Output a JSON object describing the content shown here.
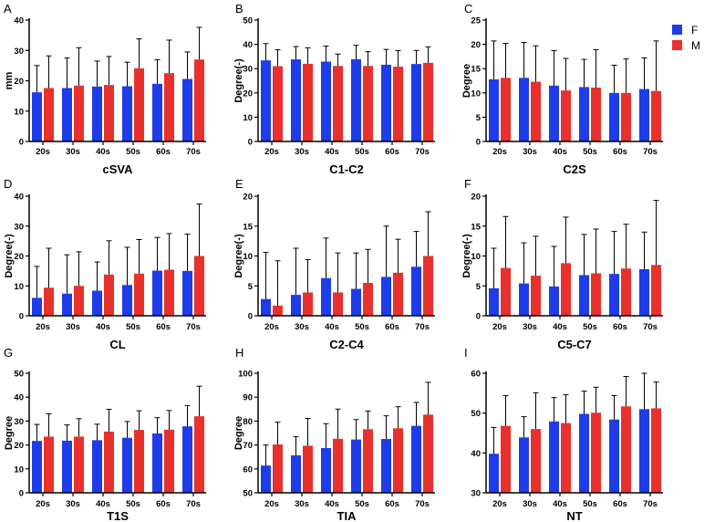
{
  "legend": {
    "items": [
      {
        "label": "F",
        "color": "#1e3ce8"
      },
      {
        "label": "M",
        "color": "#e8312d"
      }
    ]
  },
  "chart_data": [
    {
      "panel": "A",
      "type": "bar",
      "title": "cSVA",
      "ylabel": "mm",
      "categories": [
        "20s",
        "30s",
        "40s",
        "50s",
        "60s",
        "70s"
      ],
      "ylim": [
        0,
        40
      ],
      "yticks": [
        0,
        10,
        20,
        30,
        40
      ],
      "series": [
        {
          "name": "F",
          "values": [
            16.2,
            17.6,
            18.1,
            18.2,
            19.0,
            20.6
          ],
          "sd": [
            8.8,
            9.9,
            8.4,
            7.9,
            7.9,
            8.9
          ]
        },
        {
          "name": "M",
          "values": [
            17.6,
            18.4,
            18.6,
            24.1,
            22.5,
            27.0
          ],
          "sd": [
            10.6,
            12.5,
            9.4,
            9.7,
            10.9,
            10.6
          ]
        }
      ]
    },
    {
      "panel": "B",
      "type": "bar",
      "title": "C1-C2",
      "ylabel": "Degree(-)",
      "categories": [
        "20s",
        "30s",
        "40s",
        "50s",
        "60s",
        "70s"
      ],
      "ylim": [
        0,
        50
      ],
      "yticks": [
        0,
        10,
        20,
        30,
        40,
        50
      ],
      "series": [
        {
          "name": "F",
          "values": [
            33.4,
            33.8,
            32.9,
            33.9,
            31.6,
            31.9
          ],
          "sd": [
            6.9,
            5.3,
            6.4,
            5.7,
            6.3,
            5.6
          ]
        },
        {
          "name": "M",
          "values": [
            31.0,
            32.0,
            31.1,
            31.1,
            30.8,
            32.4
          ],
          "sd": [
            6.8,
            6.6,
            4.9,
            5.9,
            6.6,
            6.6
          ]
        }
      ]
    },
    {
      "panel": "C",
      "type": "bar",
      "title": "C2S",
      "ylabel": "Degree",
      "categories": [
        "20s",
        "30s",
        "40s",
        "50s",
        "60s",
        "70s"
      ],
      "ylim": [
        0,
        25
      ],
      "yticks": [
        0,
        5,
        10,
        15,
        20,
        25
      ],
      "series": [
        {
          "name": "F",
          "values": [
            12.8,
            13.1,
            11.5,
            11.2,
            10.0,
            10.8
          ],
          "sd": [
            7.9,
            7.3,
            7.2,
            5.7,
            5.7,
            6.4
          ]
        },
        {
          "name": "M",
          "values": [
            13.1,
            12.3,
            10.5,
            11.1,
            10.0,
            10.4
          ],
          "sd": [
            7.1,
            7.4,
            6.6,
            7.8,
            7.0,
            10.3
          ]
        }
      ]
    },
    {
      "panel": "D",
      "type": "bar",
      "title": "CL",
      "ylabel": "Degree(-)",
      "categories": [
        "20s",
        "30s",
        "40s",
        "50s",
        "60s",
        "70s"
      ],
      "ylim": [
        0,
        40
      ],
      "yticks": [
        0,
        10,
        20,
        30,
        40
      ],
      "series": [
        {
          "name": "F",
          "values": [
            6.0,
            7.4,
            8.4,
            10.3,
            15.1,
            15.0
          ],
          "sd": [
            10.5,
            13.0,
            9.6,
            12.6,
            11.1,
            12.3
          ]
        },
        {
          "name": "M",
          "values": [
            9.4,
            10.0,
            13.8,
            14.1,
            15.4,
            20.0
          ],
          "sd": [
            13.2,
            11.4,
            11.3,
            11.4,
            12.1,
            17.4
          ]
        }
      ]
    },
    {
      "panel": "E",
      "type": "bar",
      "title": "C2-C4",
      "ylabel": "Degree(-)",
      "categories": [
        "20s",
        "30s",
        "40s",
        "50s",
        "60s",
        "70s"
      ],
      "ylim": [
        0,
        20
      ],
      "yticks": [
        0,
        5,
        10,
        15,
        20
      ],
      "series": [
        {
          "name": "F",
          "values": [
            2.8,
            3.5,
            6.3,
            4.5,
            6.5,
            8.2
          ],
          "sd": [
            7.8,
            7.8,
            6.7,
            6.0,
            8.5,
            5.9
          ]
        },
        {
          "name": "M",
          "values": [
            1.7,
            3.9,
            3.9,
            5.5,
            7.2,
            10.0
          ],
          "sd": [
            7.5,
            5.5,
            6.6,
            5.6,
            5.6,
            7.4
          ]
        }
      ]
    },
    {
      "panel": "F",
      "type": "bar",
      "title": "C5-C7",
      "ylabel": "Degree(-)",
      "categories": [
        "20s",
        "30s",
        "40s",
        "50s",
        "60s",
        "70s"
      ],
      "ylim": [
        0,
        20
      ],
      "yticks": [
        0,
        5,
        10,
        15,
        20
      ],
      "series": [
        {
          "name": "F",
          "values": [
            4.6,
            5.4,
            4.9,
            6.8,
            7.0,
            7.8
          ],
          "sd": [
            6.7,
            6.8,
            6.7,
            6.8,
            7.1,
            6.2
          ]
        },
        {
          "name": "M",
          "values": [
            8.0,
            6.7,
            8.8,
            7.1,
            7.9,
            8.5
          ],
          "sd": [
            8.6,
            6.6,
            7.7,
            7.4,
            7.4,
            10.8
          ]
        }
      ]
    },
    {
      "panel": "G",
      "type": "bar",
      "title": "T1S",
      "ylabel": "Degree",
      "categories": [
        "20s",
        "30s",
        "40s",
        "50s",
        "60s",
        "70s"
      ],
      "ylim": [
        0,
        50
      ],
      "yticks": [
        0,
        10,
        20,
        30,
        40,
        50
      ],
      "series": [
        {
          "name": "F",
          "values": [
            21.7,
            21.8,
            22.0,
            23.0,
            24.8,
            27.8
          ],
          "sd": [
            6.9,
            6.6,
            6.7,
            6.8,
            6.6,
            8.7
          ]
        },
        {
          "name": "M",
          "values": [
            23.5,
            23.5,
            25.6,
            26.3,
            26.4,
            32.0
          ],
          "sd": [
            9.5,
            7.5,
            9.3,
            8.0,
            8.0,
            12.6
          ]
        }
      ]
    },
    {
      "panel": "H",
      "type": "bar",
      "title": "TIA",
      "ylabel": "Degree",
      "categories": [
        "20s",
        "30s",
        "40s",
        "50s",
        "60s",
        "70s"
      ],
      "ylim": [
        50,
        100
      ],
      "yticks": [
        50,
        60,
        70,
        80,
        90,
        100
      ],
      "series": [
        {
          "name": "F",
          "values": [
            61.4,
            65.7,
            68.7,
            72.3,
            72.5,
            78.0
          ],
          "sd": [
            8.6,
            7.8,
            10.2,
            8.3,
            9.7,
            9.8
          ]
        },
        {
          "name": "M",
          "values": [
            70.2,
            69.7,
            72.6,
            76.6,
            77.0,
            82.7
          ],
          "sd": [
            9.3,
            11.4,
            12.4,
            7.6,
            9.0,
            13.5
          ]
        }
      ]
    },
    {
      "panel": "I",
      "type": "bar",
      "title": "NT",
      "categories": [
        "20s",
        "30s",
        "40s",
        "50s",
        "60s",
        "70s"
      ],
      "ylim": [
        30,
        60
      ],
      "yticks": [
        30,
        40,
        50,
        60
      ],
      "series": [
        {
          "name": "F",
          "values": [
            39.8,
            43.9,
            47.9,
            49.8,
            48.4,
            51.0
          ],
          "sd": [
            6.6,
            5.2,
            6.0,
            5.7,
            6.0,
            9.0
          ]
        },
        {
          "name": "M",
          "values": [
            46.8,
            46.0,
            47.5,
            50.1,
            51.7,
            51.2
          ],
          "sd": [
            7.6,
            9.1,
            7.1,
            6.4,
            7.5,
            6.6
          ]
        }
      ]
    }
  ]
}
